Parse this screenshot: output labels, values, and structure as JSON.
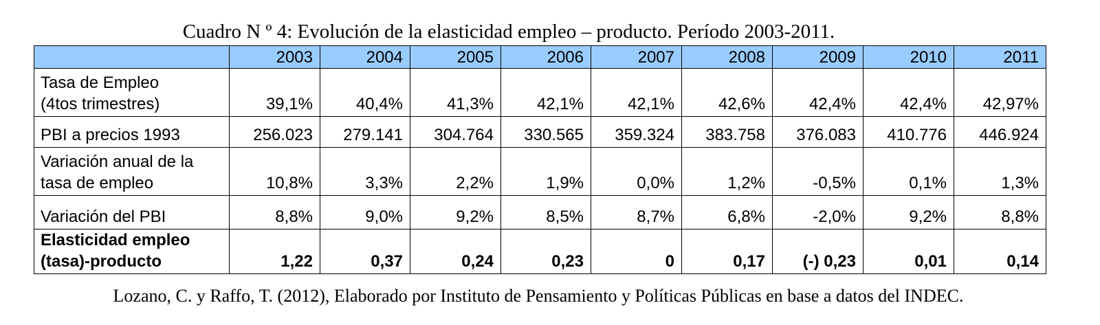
{
  "caption": "Cuadro N º 4: Evolución de la elasticidad empleo – producto. Período 2003-2011.",
  "table": {
    "header_fill": "#99ccff",
    "columns": [
      "2003",
      "2004",
      "2005",
      "2006",
      "2007",
      "2008",
      "2009",
      "2010",
      "2011"
    ],
    "rows": [
      {
        "label": [
          "Tasa de Empleo",
          "(4tos trimestres)"
        ],
        "values": [
          "39,1%",
          "40,4%",
          "41,3%",
          "42,1%",
          "42,1%",
          "42,6%",
          "42,4%",
          "42,4%",
          "42,97%"
        ]
      },
      {
        "label": [
          "PBI a precios 1993"
        ],
        "values": [
          "256.023",
          "279.141",
          "304.764",
          "330.565",
          "359.324",
          "383.758",
          "376.083",
          "410.776",
          "446.924"
        ]
      },
      {
        "label": [
          "Variación anual de la",
          "tasa de empleo"
        ],
        "values": [
          "10,8%",
          "3,3%",
          "2,2%",
          "1,9%",
          "0,0%",
          "1,2%",
          "-0,5%",
          "0,1%",
          "1,3%"
        ]
      },
      {
        "label": [
          "Variación del PBI"
        ],
        "values": [
          "8,8%",
          "9,0%",
          "9,2%",
          "8,5%",
          "8,7%",
          "6,8%",
          "-2,0%",
          "9,2%",
          "8,8%"
        ]
      },
      {
        "label": [
          "Elasticidad empleo",
          "(tasa)-producto"
        ],
        "values": [
          "1,22",
          "0,37",
          "0,24",
          "0,23",
          "0",
          "0,17",
          "(-) 0,23",
          "0,01",
          "0,14"
        ]
      }
    ]
  },
  "footnote": "Lozano, C. y Raffo, T. (2012), Elaborado por Instituto de Pensamiento y Políticas Públicas en base a datos del INDEC."
}
